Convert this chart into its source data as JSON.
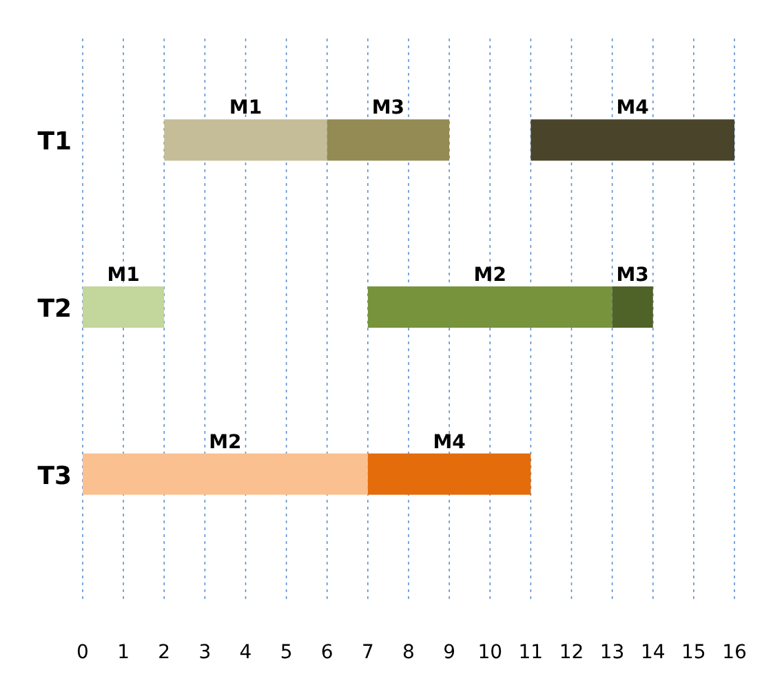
{
  "chart_data": {
    "type": "bar",
    "orientation": "horizontal",
    "categories": [
      "T1",
      "T2",
      "T3"
    ],
    "series": [
      {
        "values": [
          4,
          2,
          7
        ],
        "base": [
          2,
          0,
          0
        ],
        "colors": [
          "#c4bd97",
          "#c3d69b",
          "#fac090"
        ],
        "value_labels": [
          "M1",
          "M1",
          "M2"
        ]
      },
      {
        "values": [
          3,
          6,
          4
        ],
        "base": [
          6,
          7,
          7
        ],
        "colors": [
          "#948a54",
          "#77933c",
          "#e46c0a"
        ],
        "value_labels": [
          "M3",
          "M2",
          "M4"
        ]
      },
      {
        "values": [
          5,
          1,
          null
        ],
        "base": [
          11,
          13,
          null
        ],
        "colors": [
          "#4a452a",
          "#4f6228",
          null
        ],
        "value_labels": [
          "M4",
          "M3",
          null
        ]
      }
    ],
    "xlim": [
      0,
      16
    ],
    "xticks": [
      0,
      1,
      2,
      3,
      4,
      5,
      6,
      7,
      8,
      9,
      10,
      11,
      12,
      13,
      14,
      15,
      16
    ],
    "grid": "x"
  }
}
